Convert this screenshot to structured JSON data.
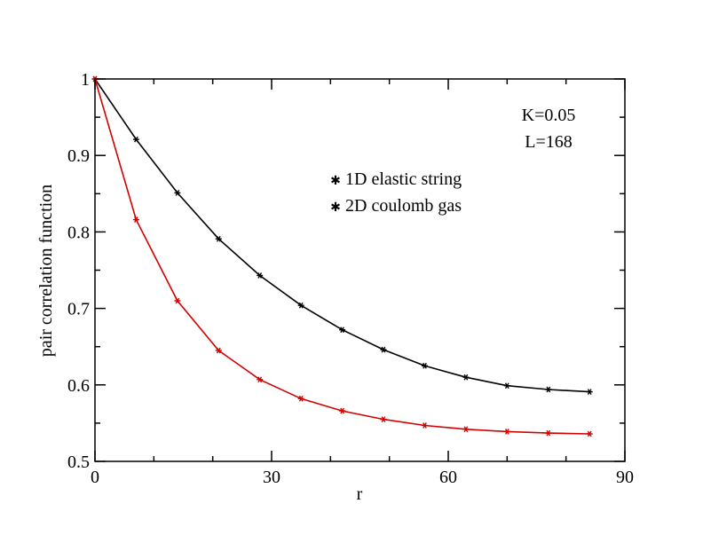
{
  "chart_data": {
    "type": "line",
    "xlabel": "r",
    "ylabel": "pair correlation function",
    "xlim": [
      0,
      90
    ],
    "ylim": [
      0.5,
      1
    ],
    "xticks": [
      "0",
      "30",
      "60",
      "90"
    ],
    "yticks": [
      "0.5",
      "0.6",
      "0.7",
      "0.8",
      "0.9",
      "1"
    ],
    "xtick_values": [
      0,
      30,
      60,
      90
    ],
    "ytick_values": [
      0.5,
      0.6,
      0.7,
      0.8,
      0.9,
      1.0
    ],
    "grid": false,
    "legend_position": "upper-right",
    "annotations": [
      "K=0.05",
      "L=168"
    ],
    "series": [
      {
        "name": "1D elastic string",
        "color": "#000000",
        "x": [
          0,
          7,
          14,
          21,
          28,
          35,
          42,
          49,
          56,
          63,
          70,
          77,
          84
        ],
        "y": [
          1.0,
          0.921,
          0.851,
          0.791,
          0.743,
          0.704,
          0.672,
          0.646,
          0.625,
          0.61,
          0.599,
          0.594,
          0.591
        ]
      },
      {
        "name": "2D coulomb gas",
        "color": "#d40000",
        "x": [
          0,
          7,
          14,
          21,
          28,
          35,
          42,
          49,
          56,
          63,
          70,
          77,
          84
        ],
        "y": [
          1.0,
          0.816,
          0.71,
          0.645,
          0.607,
          0.582,
          0.566,
          0.555,
          0.547,
          0.542,
          0.539,
          0.537,
          0.536
        ]
      }
    ]
  }
}
